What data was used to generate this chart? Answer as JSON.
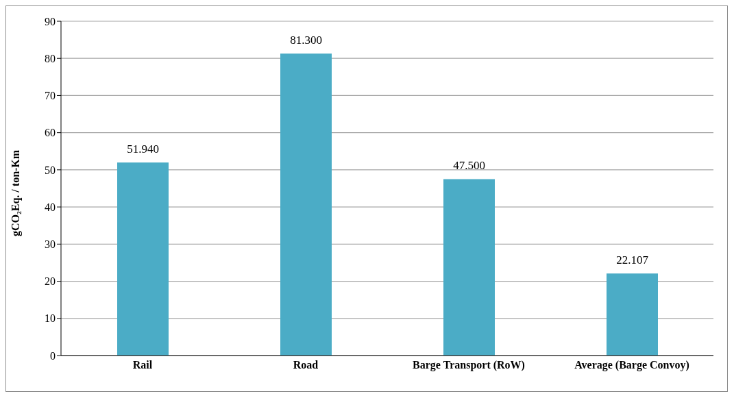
{
  "chart_data": {
    "type": "bar",
    "ylabel": "gCO₂Eq. / ton-Km",
    "categories": [
      "Rail",
      "Road",
      "Barge Transport (RoW)",
      "Average (Barge Convoy)"
    ],
    "values": [
      51.94,
      81.3,
      47.5,
      22.107
    ],
    "value_labels": [
      "51.940",
      "81.300",
      "47.500",
      "22.107"
    ],
    "color": "#4bacc6",
    "ylim": [
      0,
      90
    ],
    "yticks": [
      0,
      10,
      20,
      30,
      40,
      50,
      60,
      70,
      80,
      90
    ],
    "grid": "y"
  }
}
